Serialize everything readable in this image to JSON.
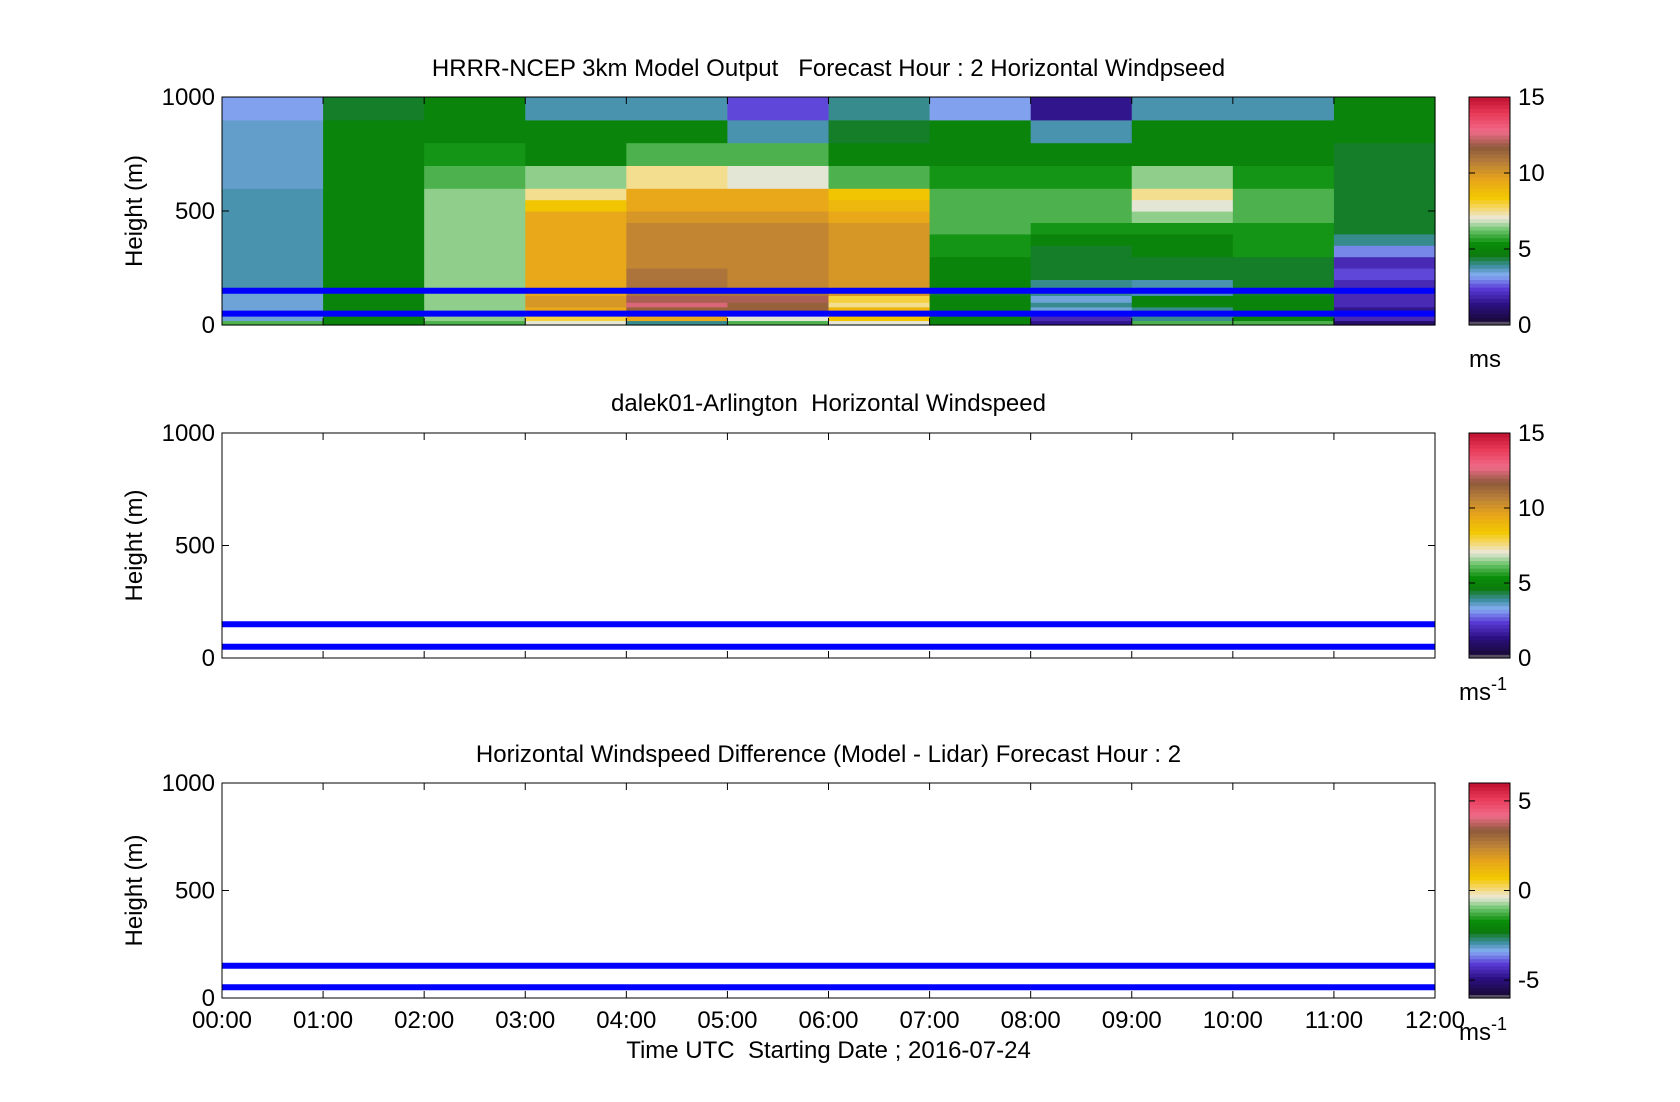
{
  "chart_data": [
    {
      "type": "heatmap",
      "title": "HRRR-NCEP 3km Model Output   Forecast Hour : 2 Horizontal Windpseed",
      "ylabel": "Height (m)",
      "xlabel": "",
      "ylim": [
        0,
        1000
      ],
      "yticks": [
        0,
        500,
        1000
      ],
      "xlim": [
        0,
        12
      ],
      "xticks": [
        0,
        1,
        2,
        3,
        4,
        5,
        6,
        7,
        8,
        9,
        10,
        11,
        12
      ],
      "x_edges": [
        0,
        1,
        2,
        3,
        4,
        5,
        6,
        7,
        8,
        9,
        10,
        11,
        12
      ],
      "y_edges": [
        0,
        20,
        40,
        60,
        80,
        100,
        130,
        160,
        200,
        250,
        300,
        350,
        400,
        450,
        500,
        550,
        600,
        700,
        800,
        900,
        1000
      ],
      "z_units": "m/s",
      "z": [
        [
          6,
          5,
          6,
          7,
          4,
          6,
          7,
          5,
          1.5,
          6,
          6,
          1
        ],
        [
          3.5,
          5,
          6.5,
          8,
          9.5,
          7,
          8.5,
          5,
          2,
          4,
          5,
          2
        ],
        [
          3.5,
          5,
          6.5,
          8,
          11,
          9,
          9.5,
          5,
          3,
          5,
          5,
          1.5
        ],
        [
          3.5,
          5,
          6.5,
          9.5,
          11.5,
          11.5,
          9,
          5,
          3.5,
          4,
          5,
          1.5
        ],
        [
          3.5,
          5,
          6.5,
          10,
          12.5,
          11.5,
          7.5,
          5,
          4,
          5,
          5,
          2
        ],
        [
          3.5,
          5,
          6.5,
          10,
          12,
          12,
          8,
          5,
          3.5,
          5,
          5,
          2
        ],
        [
          3.5,
          5,
          6.5,
          9.5,
          11,
          11,
          10,
          4.5,
          4,
          3.8,
          4.5,
          2
        ],
        [
          3.8,
          5,
          6.5,
          9.5,
          11,
          10.5,
          10,
          5,
          4,
          3.8,
          4.5,
          2
        ],
        [
          3.8,
          5,
          6.5,
          9.5,
          11,
          10.5,
          10,
          5,
          4.5,
          4.5,
          4.5,
          2.5
        ],
        [
          3.8,
          5,
          6.5,
          9.5,
          10.5,
          10.5,
          10,
          5,
          4.5,
          4.5,
          4.5,
          2
        ],
        [
          3.8,
          5,
          6.5,
          9.5,
          10.5,
          10.5,
          10,
          5.5,
          4.5,
          5,
          5.5,
          3
        ],
        [
          3.8,
          5,
          6.5,
          9.5,
          10.5,
          10.5,
          10,
          5.5,
          5,
          5,
          5.5,
          4
        ],
        [
          3.8,
          5,
          6.5,
          9.5,
          10.5,
          10.5,
          10,
          6,
          5.5,
          5.5,
          5.5,
          4.5
        ],
        [
          3.8,
          5,
          6.5,
          9.5,
          10,
          10,
          9.5,
          6,
          6,
          6.5,
          6,
          4.5
        ],
        [
          3.8,
          5,
          6.5,
          8.5,
          9.5,
          9.5,
          9,
          6,
          6,
          7,
          6,
          4.5
        ],
        [
          3.8,
          5,
          6.5,
          7.5,
          9.5,
          9.5,
          8.5,
          6,
          6,
          7.5,
          6,
          4.5
        ],
        [
          3.6,
          5,
          6,
          6.5,
          7.5,
          7,
          6,
          5.5,
          5.5,
          6.5,
          5.5,
          4.5
        ],
        [
          3.6,
          5,
          5.5,
          5,
          6,
          6,
          5,
          5,
          5,
          5,
          5,
          4.5
        ],
        [
          3.6,
          5,
          5,
          5,
          5,
          3.8,
          4.5,
          5,
          3.8,
          5,
          5,
          5
        ],
        [
          3.2,
          4.5,
          5,
          3.8,
          3.8,
          2.5,
          4,
          3.2,
          1.5,
          3.8,
          3.8,
          5
        ]
      ],
      "overlay_lines_height_m": [
        50,
        150
      ],
      "colorbar": {
        "min": 0,
        "max": 15,
        "ticks": [
          0,
          5,
          10,
          15
        ],
        "label": "ms",
        "label_sup": ""
      }
    },
    {
      "type": "heatmap",
      "title": "dalek01-Arlington  Horizontal Windspeed",
      "ylabel": "Height (m)",
      "xlabel": "",
      "ylim": [
        0,
        1000
      ],
      "yticks": [
        0,
        500,
        1000
      ],
      "xlim": [
        0,
        12
      ],
      "xticks": [
        0,
        1,
        2,
        3,
        4,
        5,
        6,
        7,
        8,
        9,
        10,
        11,
        12
      ],
      "z": [],
      "overlay_lines_height_m": [
        50,
        150
      ],
      "colorbar": {
        "min": 0,
        "max": 15,
        "ticks": [
          0,
          5,
          10,
          15
        ],
        "label": "ms",
        "label_sup": "-1"
      }
    },
    {
      "type": "heatmap",
      "title": "Horizontal Windspeed Difference (Model - Lidar) Forecast Hour : 2",
      "ylabel": "Height (m)",
      "xlabel": "Time UTC  Starting Date ; 2016-07-24",
      "ylim": [
        0,
        1000
      ],
      "yticks": [
        0,
        500,
        1000
      ],
      "xlim": [
        0,
        12
      ],
      "xticks": [
        0,
        1,
        2,
        3,
        4,
        5,
        6,
        7,
        8,
        9,
        10,
        11,
        12
      ],
      "xticklabels": [
        "00:00",
        "01:00",
        "02:00",
        "03:00",
        "04:00",
        "05:00",
        "06:00",
        "07:00",
        "08:00",
        "09:00",
        "10:00",
        "11:00",
        "12:00"
      ],
      "z": [],
      "overlay_lines_height_m": [
        50,
        150
      ],
      "colorbar": {
        "min": -6,
        "max": 6,
        "ticks": [
          -5,
          0,
          5
        ],
        "label": "ms",
        "label_sup": "-1"
      }
    }
  ],
  "colors": {
    "overlay_line": "#0000ff",
    "colormap_wind": [
      [
        0.0,
        "#7f7f7f"
      ],
      [
        0.02,
        "#1a0a3a"
      ],
      [
        0.09,
        "#2a0f80"
      ],
      [
        0.16,
        "#5a3ad6"
      ],
      [
        0.22,
        "#86aef2"
      ],
      [
        0.26,
        "#3e8ea0"
      ],
      [
        0.31,
        "#0b7a0b"
      ],
      [
        0.36,
        "#0a8f0a"
      ],
      [
        0.42,
        "#6ec46e"
      ],
      [
        0.47,
        "#ece8dc"
      ],
      [
        0.52,
        "#f7d55c"
      ],
      [
        0.56,
        "#f2c800"
      ],
      [
        0.64,
        "#e7a51b"
      ],
      [
        0.72,
        "#b57c3b"
      ],
      [
        0.78,
        "#8e5a3b"
      ],
      [
        0.85,
        "#f06b8a"
      ],
      [
        0.93,
        "#e83a58"
      ],
      [
        1.0,
        "#c01030"
      ]
    ]
  }
}
